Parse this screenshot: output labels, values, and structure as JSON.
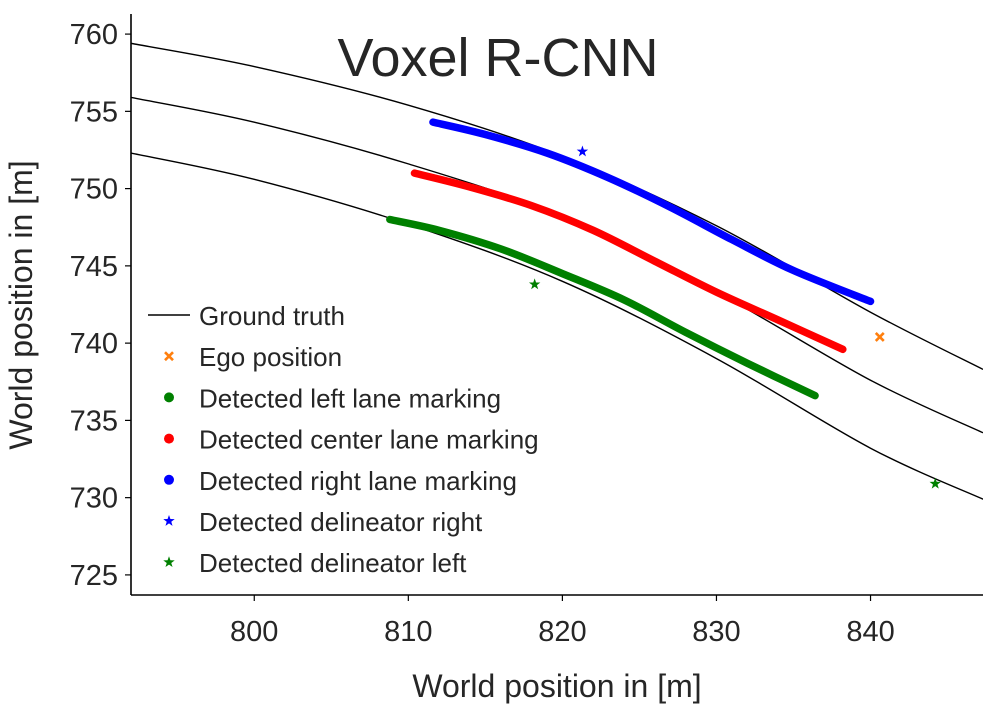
{
  "chart_data": {
    "type": "line",
    "title": "Voxel R-CNN",
    "xlabel": "World position in [m]",
    "ylabel": "World position in [m]",
    "xlim": [
      792,
      847.3
    ],
    "ylim": [
      723.7,
      761.3
    ],
    "xticks": [
      800,
      810,
      820,
      830,
      840
    ],
    "xtick_labels": [
      "800",
      "810",
      "820",
      "830",
      "840"
    ],
    "yticks": [
      725,
      730,
      735,
      740,
      745,
      750,
      755,
      760
    ],
    "ytick_labels": [
      "725",
      "730",
      "735",
      "740",
      "745",
      "750",
      "755",
      "760"
    ],
    "grid": false,
    "legend_position": "center-left",
    "series": [
      {
        "name": "Ground truth",
        "kind": "lines",
        "color": "#000000",
        "lines": [
          [
            [
              792,
              759.4
            ],
            [
              800,
              757.9
            ],
            [
              810,
              755.4
            ],
            [
              820,
              752.1
            ],
            [
              830,
              747.6
            ],
            [
              840,
              742.0
            ],
            [
              847.3,
              738.3
            ]
          ],
          [
            [
              792,
              755.9
            ],
            [
              800,
              754.3
            ],
            [
              810,
              751.6
            ],
            [
              820,
              748.2
            ],
            [
              830,
              743.3
            ],
            [
              840,
              737.6
            ],
            [
              847.3,
              734.2
            ]
          ],
          [
            [
              792,
              752.3
            ],
            [
              800,
              750.6
            ],
            [
              810,
              747.7
            ],
            [
              820,
              744.0
            ],
            [
              830,
              739.0
            ],
            [
              840,
              733.2
            ],
            [
              847.3,
              729.9
            ]
          ]
        ]
      },
      {
        "name": "Ego position",
        "kind": "marker-x",
        "color": "#ff7f0e",
        "points": [
          [
            840.6,
            740.4
          ]
        ]
      },
      {
        "name": "Detected left lane marking",
        "kind": "thick-line",
        "color": "#008000",
        "points": [
          [
            808.8,
            748.0
          ],
          [
            812,
            747.3
          ],
          [
            816,
            746.1
          ],
          [
            820,
            744.5
          ],
          [
            824,
            742.8
          ],
          [
            828,
            740.7
          ],
          [
            832,
            738.7
          ],
          [
            836.4,
            736.6
          ]
        ]
      },
      {
        "name": "Detected center lane marking",
        "kind": "thick-line",
        "color": "#ff0000",
        "points": [
          [
            810.4,
            751.0
          ],
          [
            814,
            750.1
          ],
          [
            818,
            748.9
          ],
          [
            822,
            747.3
          ],
          [
            826,
            745.3
          ],
          [
            830,
            743.3
          ],
          [
            834,
            741.5
          ],
          [
            838.2,
            739.6
          ]
        ]
      },
      {
        "name": "Detected right lane marking",
        "kind": "thick-line",
        "color": "#0000ff",
        "points": [
          [
            811.6,
            754.3
          ],
          [
            815,
            753.5
          ],
          [
            819,
            752.3
          ],
          [
            823,
            750.7
          ],
          [
            827,
            748.8
          ],
          [
            831,
            746.7
          ],
          [
            835,
            744.7
          ],
          [
            840,
            742.7
          ]
        ]
      },
      {
        "name": "Detected delineator right",
        "kind": "marker-star",
        "color": "#0000ff",
        "points": [
          [
            821.3,
            752.4
          ]
        ]
      },
      {
        "name": "Detected delineator left",
        "kind": "marker-star",
        "color": "#008000",
        "points": [
          [
            818.2,
            743.8
          ],
          [
            844.2,
            730.9
          ]
        ]
      }
    ]
  }
}
